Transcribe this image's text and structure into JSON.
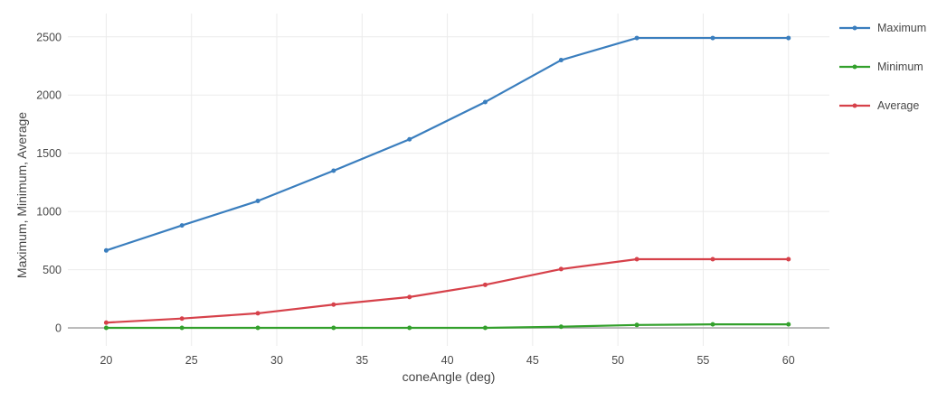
{
  "chart_data": {
    "type": "line",
    "title": "",
    "xlabel": "coneAngle (deg)",
    "ylabel": "Maximum, Minimum, Average",
    "x": [
      20,
      24.44,
      28.89,
      33.33,
      37.78,
      42.22,
      46.67,
      51.11,
      55.56,
      60
    ],
    "series": [
      {
        "name": "Maximum",
        "color": "#3a7ebe",
        "values": [
          665,
          880,
          1090,
          1350,
          1620,
          1940,
          2300,
          2490,
          2490,
          2490
        ]
      },
      {
        "name": "Minimum",
        "color": "#33a02c",
        "values": [
          0,
          0,
          0,
          0,
          0,
          0,
          10,
          25,
          30,
          30
        ]
      },
      {
        "name": "Average",
        "color": "#d6414a",
        "values": [
          45,
          80,
          125,
          200,
          265,
          370,
          505,
          590,
          590,
          590
        ]
      }
    ],
    "xticks": [
      20,
      25,
      30,
      35,
      40,
      45,
      50,
      55,
      60
    ],
    "yticks": [
      0,
      500,
      1000,
      1500,
      2000,
      2500
    ],
    "xlim": [
      17.75,
      62.4
    ],
    "ylim": [
      -155,
      2700
    ],
    "grid": true,
    "legend_position": "right",
    "colors": {
      "grid": "#ebebeb",
      "zeroline": "#a9a9a9",
      "text": "#474747",
      "background": "#ffffff"
    }
  }
}
